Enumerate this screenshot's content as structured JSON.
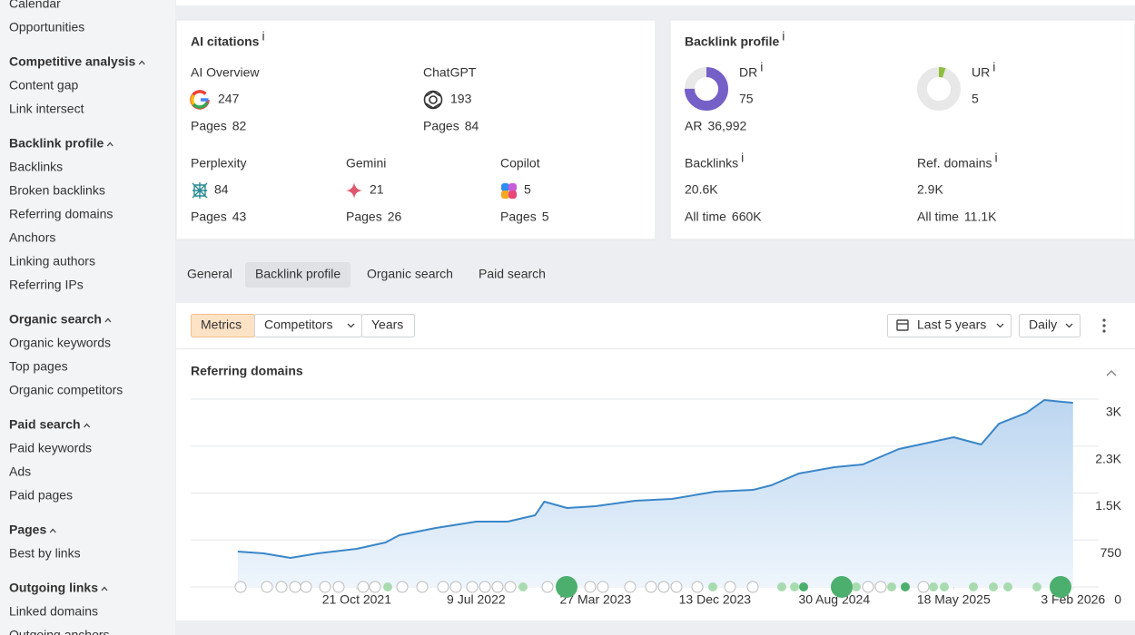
{
  "sidebar": {
    "items": [
      {
        "text": "Calendar",
        "heading": false
      },
      {
        "text": "Opportunities",
        "heading": false
      },
      {
        "text": "Competitive analysis",
        "heading": true
      },
      {
        "text": "Content gap",
        "heading": false
      },
      {
        "text": "Link intersect",
        "heading": false
      },
      {
        "text": "Backlink profile",
        "heading": true
      },
      {
        "text": "Backlinks",
        "heading": false
      },
      {
        "text": "Broken backlinks",
        "heading": false
      },
      {
        "text": "Referring domains",
        "heading": false
      },
      {
        "text": "Anchors",
        "heading": false
      },
      {
        "text": "Linking authors",
        "heading": false
      },
      {
        "text": "Referring IPs",
        "heading": false
      },
      {
        "text": "Organic search",
        "heading": true
      },
      {
        "text": "Organic keywords",
        "heading": false
      },
      {
        "text": "Top pages",
        "heading": false
      },
      {
        "text": "Organic competitors",
        "heading": false
      },
      {
        "text": "Paid search",
        "heading": true
      },
      {
        "text": "Paid keywords",
        "heading": false
      },
      {
        "text": "Ads",
        "heading": false
      },
      {
        "text": "Paid pages",
        "heading": false
      },
      {
        "text": "Pages",
        "heading": true
      },
      {
        "text": "Best by links",
        "heading": false
      },
      {
        "text": "Outgoing links",
        "heading": true
      },
      {
        "text": "Linked domains",
        "heading": false
      },
      {
        "text": "Outgoing anchors",
        "heading": false
      }
    ]
  },
  "ai_citations": {
    "title": "AI citations",
    "info": "i",
    "pages_label": "Pages",
    "items": [
      {
        "name": "AI Overview",
        "value": 247,
        "pages": 82
      },
      {
        "name": "ChatGPT",
        "value": 193,
        "pages": 84
      },
      {
        "name": "Perplexity",
        "value": 84,
        "pages": 43
      },
      {
        "name": "Gemini",
        "value": 21,
        "pages": 26
      },
      {
        "name": "Copilot",
        "value": 5,
        "pages": 5
      }
    ]
  },
  "backlink_profile": {
    "title": "Backlink profile",
    "info": "i",
    "dr": {
      "label": "DR",
      "value": 75
    },
    "ur": {
      "label": "UR",
      "value": 5
    },
    "ar": {
      "label": "AR",
      "value": "36,992"
    },
    "backlinks": {
      "label": "Backlinks",
      "value": "20.6K",
      "all_time_label": "All time",
      "all_time": "660K"
    },
    "ref_domains": {
      "label": "Ref. domains",
      "value": "2.9K",
      "all_time_label": "All time",
      "all_time": "11.1K"
    }
  },
  "tabs": {
    "items": [
      "General",
      "Backlink profile",
      "Organic search",
      "Paid search"
    ],
    "active": 1
  },
  "toolbar": {
    "views": [
      "Metrics",
      "Competitors",
      "Years"
    ],
    "active_view": 0,
    "range": "Last 5 years",
    "interval": "Daily"
  },
  "chart_data": {
    "type": "area",
    "title": "Referring domains",
    "color": "#3a86c8",
    "x": [
      "2021-02-03",
      "2021-03-31",
      "2021-05-29",
      "2021-07-28",
      "2021-10-21",
      "2021-12-23",
      "2022-01-22",
      "2022-04-12",
      "2022-07-09",
      "2022-09-16",
      "2022-11-15",
      "2022-12-05",
      "2023-01-24",
      "2023-03-27",
      "2023-06-22",
      "2023-09-10",
      "2023-12-13",
      "2024-03-05",
      "2024-04-14",
      "2024-06-13",
      "2024-08-30",
      "2024-10-31",
      "2025-01-18",
      "2025-05-18",
      "2025-07-17",
      "2025-08-25",
      "2025-10-24",
      "2025-12-02",
      "2026-01-11",
      "2026-02-03"
    ],
    "values": [
      565,
      536,
      464,
      536,
      609,
      710,
      826,
      942,
      1043,
      1043,
      1145,
      1362,
      1261,
      1290,
      1377,
      1406,
      1522,
      1550,
      1623,
      1811,
      1913,
      1956,
      2203,
      2391,
      2275,
      2608,
      2782,
      2985,
      2956,
      2942
    ],
    "xlim": [
      "2020-10-23",
      "2026-03-31"
    ],
    "xticks": [
      {
        "value": "2021-10-21",
        "label": "21 Oct 2021"
      },
      {
        "value": "2022-07-09",
        "label": "9 Jul 2022"
      },
      {
        "value": "2023-03-27",
        "label": "27 Mar 2023"
      },
      {
        "value": "2023-12-13",
        "label": "13 Dec 2023"
      },
      {
        "value": "2024-08-30",
        "label": "30 Aug 2024"
      },
      {
        "value": "2025-05-18",
        "label": "18 May 2025"
      },
      {
        "value": "2026-02-03",
        "label": "3 Feb 2026"
      }
    ],
    "ylim": [
      0,
      3000
    ],
    "yticks": [
      0,
      750,
      {
        "value": 1500,
        "label": "1.5K"
      },
      {
        "value": 2250,
        "label": "2.3K"
      },
      {
        "value": 3000,
        "label": "3K"
      }
    ],
    "grid": true
  }
}
